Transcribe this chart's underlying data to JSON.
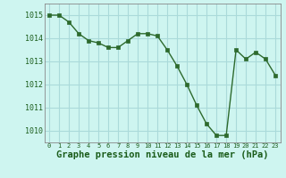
{
  "x": [
    0,
    1,
    2,
    3,
    4,
    5,
    6,
    7,
    8,
    9,
    10,
    11,
    12,
    13,
    14,
    15,
    16,
    17,
    18,
    19,
    20,
    21,
    22,
    23
  ],
  "y": [
    1015.0,
    1015.0,
    1014.7,
    1014.2,
    1013.9,
    1013.8,
    1013.6,
    1013.6,
    1013.9,
    1014.2,
    1014.2,
    1014.1,
    1013.5,
    1012.8,
    1012.0,
    1011.1,
    1010.3,
    1009.8,
    1009.8,
    1013.5,
    1013.1,
    1013.4,
    1013.1,
    1012.4
  ],
  "line_color": "#2d6a2d",
  "marker_color": "#2d6a2d",
  "bg_color": "#cef5f0",
  "grid_color": "#aadada",
  "ylim_min": 1009.5,
  "ylim_max": 1015.5,
  "xlabel": "Graphe pression niveau de la mer (hPa)",
  "xlabel_fontsize": 7.5,
  "ytick_labels": [
    "1010",
    "1011",
    "1012",
    "1013",
    "1014",
    "1015"
  ],
  "ytick_values": [
    1010,
    1011,
    1012,
    1013,
    1014,
    1015
  ],
  "xtick_values": [
    0,
    1,
    2,
    3,
    4,
    5,
    6,
    7,
    8,
    9,
    10,
    11,
    12,
    13,
    14,
    15,
    16,
    17,
    18,
    19,
    20,
    21,
    22,
    23
  ],
  "axis_color": "#888888",
  "marker_size": 2.5,
  "line_width": 1.0
}
